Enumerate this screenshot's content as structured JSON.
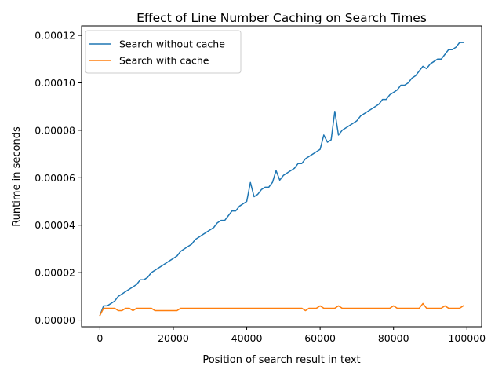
{
  "chart_data": {
    "type": "line",
    "title": "Effect of Line Number Caching on Search Times",
    "xlabel": "Position of search result in text",
    "ylabel": "Runtime in seconds",
    "xlim": [
      -5000,
      104000
    ],
    "ylim": [
      -2.8e-06,
      0.000124
    ],
    "x_ticks": [
      0,
      20000,
      40000,
      60000,
      80000,
      100000
    ],
    "x_tick_labels": [
      "0",
      "20000",
      "40000",
      "60000",
      "80000",
      "100000"
    ],
    "y_ticks": [
      0,
      2e-05,
      4e-05,
      6e-05,
      8e-05,
      0.0001,
      0.00012
    ],
    "y_tick_labels": [
      "0.00000",
      "0.00002",
      "0.00004",
      "0.00006",
      "0.00008",
      "0.00010",
      "0.00012"
    ],
    "grid": false,
    "legend_position": "top-left",
    "series": [
      {
        "name": "Search without cache",
        "color": "#1f77b4",
        "x": [
          0,
          1000,
          2000,
          3000,
          4000,
          5000,
          6000,
          7000,
          8000,
          9000,
          10000,
          11000,
          12000,
          13000,
          14000,
          15000,
          16000,
          17000,
          18000,
          19000,
          20000,
          21000,
          22000,
          23000,
          24000,
          25000,
          26000,
          27000,
          28000,
          29000,
          30000,
          31000,
          32000,
          33000,
          34000,
          35000,
          36000,
          37000,
          38000,
          39000,
          40000,
          41000,
          42000,
          43000,
          44000,
          45000,
          46000,
          47000,
          48000,
          49000,
          50000,
          51000,
          52000,
          53000,
          54000,
          55000,
          56000,
          57000,
          58000,
          59000,
          60000,
          61000,
          62000,
          63000,
          64000,
          65000,
          66000,
          67000,
          68000,
          69000,
          70000,
          71000,
          72000,
          73000,
          74000,
          75000,
          76000,
          77000,
          78000,
          79000,
          80000,
          81000,
          82000,
          83000,
          84000,
          85000,
          86000,
          87000,
          88000,
          89000,
          90000,
          91000,
          92000,
          93000,
          94000,
          95000,
          96000,
          97000,
          98000,
          99000
        ],
        "values": [
          2e-06,
          6e-06,
          6e-06,
          7e-06,
          8e-06,
          1e-05,
          1.1e-05,
          1.2e-05,
          1.3e-05,
          1.4e-05,
          1.5e-05,
          1.7e-05,
          1.7e-05,
          1.8e-05,
          2e-05,
          2.1e-05,
          2.2e-05,
          2.3e-05,
          2.4e-05,
          2.5e-05,
          2.6e-05,
          2.7e-05,
          2.9e-05,
          3e-05,
          3.1e-05,
          3.2e-05,
          3.4e-05,
          3.5e-05,
          3.6e-05,
          3.7e-05,
          3.8e-05,
          3.9e-05,
          4.1e-05,
          4.2e-05,
          4.2e-05,
          4.4e-05,
          4.6e-05,
          4.6e-05,
          4.8e-05,
          4.9e-05,
          5e-05,
          5.8e-05,
          5.2e-05,
          5.3e-05,
          5.5e-05,
          5.6e-05,
          5.6e-05,
          5.8e-05,
          6.3e-05,
          5.9e-05,
          6.1e-05,
          6.2e-05,
          6.3e-05,
          6.4e-05,
          6.6e-05,
          6.6e-05,
          6.8e-05,
          6.9e-05,
          7e-05,
          7.1e-05,
          7.2e-05,
          7.8e-05,
          7.5e-05,
          7.6e-05,
          8.8e-05,
          7.8e-05,
          8e-05,
          8.1e-05,
          8.2e-05,
          8.3e-05,
          8.4e-05,
          8.6e-05,
          8.7e-05,
          8.8e-05,
          8.9e-05,
          9e-05,
          9.1e-05,
          9.3e-05,
          9.3e-05,
          9.5e-05,
          9.6e-05,
          9.7e-05,
          9.9e-05,
          9.9e-05,
          0.0001,
          0.000102,
          0.000103,
          0.000105,
          0.000107,
          0.000106,
          0.000108,
          0.000109,
          0.00011,
          0.00011,
          0.000112,
          0.000114,
          0.000114,
          0.000115,
          0.000117,
          0.000117
        ]
      },
      {
        "name": "Search with cache",
        "color": "#ff7f0e",
        "x": [
          0,
          1000,
          2000,
          3000,
          4000,
          5000,
          6000,
          7000,
          8000,
          9000,
          10000,
          11000,
          12000,
          13000,
          14000,
          15000,
          16000,
          17000,
          18000,
          19000,
          20000,
          21000,
          22000,
          23000,
          24000,
          25000,
          26000,
          27000,
          28000,
          29000,
          30000,
          31000,
          32000,
          33000,
          34000,
          35000,
          36000,
          37000,
          38000,
          39000,
          40000,
          41000,
          42000,
          43000,
          44000,
          45000,
          46000,
          47000,
          48000,
          49000,
          50000,
          51000,
          52000,
          53000,
          54000,
          55000,
          56000,
          57000,
          58000,
          59000,
          60000,
          61000,
          62000,
          63000,
          64000,
          65000,
          66000,
          67000,
          68000,
          69000,
          70000,
          71000,
          72000,
          73000,
          74000,
          75000,
          76000,
          77000,
          78000,
          79000,
          80000,
          81000,
          82000,
          83000,
          84000,
          85000,
          86000,
          87000,
          88000,
          89000,
          90000,
          91000,
          92000,
          93000,
          94000,
          95000,
          96000,
          97000,
          98000,
          99000
        ],
        "values": [
          2e-06,
          5e-06,
          5e-06,
          5e-06,
          5e-06,
          4e-06,
          4e-06,
          5e-06,
          5e-06,
          4e-06,
          5e-06,
          5e-06,
          5e-06,
          5e-06,
          5e-06,
          4e-06,
          4e-06,
          4e-06,
          4e-06,
          4e-06,
          4e-06,
          4e-06,
          5e-06,
          5e-06,
          5e-06,
          5e-06,
          5e-06,
          5e-06,
          5e-06,
          5e-06,
          5e-06,
          5e-06,
          5e-06,
          5e-06,
          5e-06,
          5e-06,
          5e-06,
          5e-06,
          5e-06,
          5e-06,
          5e-06,
          5e-06,
          5e-06,
          5e-06,
          5e-06,
          5e-06,
          5e-06,
          5e-06,
          5e-06,
          5e-06,
          5e-06,
          5e-06,
          5e-06,
          5e-06,
          5e-06,
          5e-06,
          4e-06,
          5e-06,
          5e-06,
          5e-06,
          6e-06,
          5e-06,
          5e-06,
          5e-06,
          5e-06,
          6e-06,
          5e-06,
          5e-06,
          5e-06,
          5e-06,
          5e-06,
          5e-06,
          5e-06,
          5e-06,
          5e-06,
          5e-06,
          5e-06,
          5e-06,
          5e-06,
          5e-06,
          6e-06,
          5e-06,
          5e-06,
          5e-06,
          5e-06,
          5e-06,
          5e-06,
          5e-06,
          7e-06,
          5e-06,
          5e-06,
          5e-06,
          5e-06,
          5e-06,
          6e-06,
          5e-06,
          5e-06,
          5e-06,
          5e-06,
          6e-06
        ]
      }
    ]
  }
}
